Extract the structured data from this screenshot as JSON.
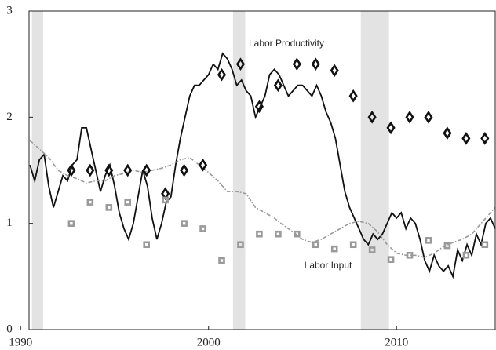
{
  "chart_data": {
    "type": "line",
    "xlim": [
      1990.45,
      2015.25
    ],
    "ylim": [
      0,
      3
    ],
    "xticks": [
      1990,
      2000,
      2010
    ],
    "yticks": [
      0,
      1,
      2,
      3
    ],
    "grid": false,
    "shading_color": "#e3e3e3",
    "shading": [
      [
        1990.6,
        1991.2
      ],
      [
        2001.3,
        2001.95
      ],
      [
        2008.1,
        2009.6
      ]
    ],
    "annotations": [
      "Labor Productivity",
      "Labor Input"
    ],
    "series": [
      {
        "mode": "line",
        "color": "#111111",
        "dash": false,
        "x": [
          1990.5,
          1990.75,
          1991,
          1991.25,
          1991.5,
          1991.75,
          1992,
          1992.25,
          1992.5,
          1992.75,
          1993,
          1993.25,
          1993.5,
          1993.75,
          1994,
          1994.25,
          1994.5,
          1994.75,
          1995,
          1995.25,
          1995.5,
          1995.75,
          1996,
          1996.25,
          1996.5,
          1996.75,
          1997,
          1997.25,
          1997.5,
          1997.75,
          1998,
          1998.25,
          1998.5,
          1998.75,
          1999,
          1999.25,
          1999.5,
          1999.75,
          2000,
          2000.25,
          2000.5,
          2000.75,
          2001,
          2001.25,
          2001.5,
          2001.75,
          2002,
          2002.25,
          2002.5,
          2002.75,
          2003,
          2003.25,
          2003.5,
          2003.75,
          2004,
          2004.25,
          2004.5,
          2004.75,
          2005,
          2005.25,
          2005.5,
          2005.75,
          2006,
          2006.25,
          2006.5,
          2006.75,
          2007,
          2007.25,
          2007.5,
          2007.75,
          2008,
          2008.25,
          2008.5,
          2008.75,
          2009,
          2009.25,
          2009.5,
          2009.75,
          2010,
          2010.25,
          2010.5,
          2010.75,
          2011,
          2011.25,
          2011.5,
          2011.75,
          2012,
          2012.25,
          2012.5,
          2012.75,
          2013,
          2013.25,
          2013.5,
          2013.75,
          2014,
          2014.25,
          2014.5,
          2014.75,
          2015,
          2015.25
        ],
        "values": [
          1.55,
          1.4,
          1.6,
          1.65,
          1.35,
          1.15,
          1.3,
          1.45,
          1.4,
          1.55,
          1.6,
          1.9,
          1.9,
          1.7,
          1.5,
          1.3,
          1.45,
          1.55,
          1.35,
          1.1,
          0.95,
          0.85,
          1.0,
          1.25,
          1.5,
          1.35,
          1.05,
          0.85,
          1.0,
          1.2,
          1.25,
          1.55,
          1.8,
          2.0,
          2.2,
          2.3,
          2.3,
          2.35,
          2.4,
          2.5,
          2.45,
          2.6,
          2.55,
          2.45,
          2.3,
          2.35,
          2.25,
          2.2,
          2.0,
          2.1,
          2.2,
          2.4,
          2.45,
          2.4,
          2.3,
          2.2,
          2.25,
          2.3,
          2.3,
          2.25,
          2.2,
          2.3,
          2.2,
          2.05,
          1.95,
          1.8,
          1.55,
          1.3,
          1.15,
          1.05,
          0.95,
          0.85,
          0.8,
          0.9,
          0.85,
          0.9,
          1.0,
          1.1,
          1.05,
          1.1,
          0.95,
          1.05,
          1.0,
          0.85,
          0.65,
          0.55,
          0.7,
          0.6,
          0.55,
          0.6,
          0.5,
          0.75,
          0.65,
          0.8,
          0.7,
          0.9,
          0.8,
          1.0,
          1.05,
          0.95
        ]
      },
      {
        "mode": "line",
        "color": "#9a9a9a",
        "dash": true,
        "x": [
          1990.5,
          1991,
          1991.5,
          1992,
          1992.5,
          1993,
          1993.5,
          1994,
          1994.5,
          1995,
          1995.5,
          1996,
          1996.5,
          1997,
          1997.5,
          1998,
          1998.5,
          1999,
          1999.5,
          2000,
          2000.5,
          2001,
          2001.5,
          2002,
          2002.5,
          2003,
          2003.5,
          2004,
          2004.5,
          2005,
          2005.5,
          2006,
          2006.5,
          2007,
          2007.5,
          2008,
          2008.5,
          2009,
          2009.5,
          2010,
          2010.5,
          2011,
          2011.5,
          2012,
          2012.5,
          2013,
          2013.5,
          2014,
          2014.5,
          2015,
          2015.25
        ],
        "values": [
          1.78,
          1.7,
          1.62,
          1.5,
          1.45,
          1.42,
          1.38,
          1.4,
          1.4,
          1.45,
          1.47,
          1.5,
          1.48,
          1.5,
          1.52,
          1.55,
          1.6,
          1.62,
          1.55,
          1.48,
          1.4,
          1.3,
          1.3,
          1.28,
          1.15,
          1.1,
          1.05,
          0.98,
          0.92,
          0.85,
          0.82,
          0.85,
          0.9,
          0.95,
          1.0,
          1.02,
          1.0,
          0.92,
          0.8,
          0.72,
          0.7,
          0.7,
          0.68,
          0.72,
          0.78,
          0.82,
          0.85,
          0.9,
          1.0,
          1.1,
          1.15
        ]
      },
      {
        "mode": "marker",
        "marker": "diamond",
        "color": "#111111",
        "x": [
          1992.7,
          1993.7,
          1994.7,
          1995.7,
          1996.7,
          1997.7,
          1998.7,
          1999.7,
          2000.7,
          2001.7,
          2002.7,
          2003.7,
          2004.7,
          2005.7,
          2006.7,
          2007.7,
          2008.7,
          2009.7,
          2010.7,
          2011.7,
          2012.7,
          2013.7,
          2014.7
        ],
        "values": [
          1.5,
          1.5,
          1.5,
          1.5,
          1.5,
          1.28,
          1.5,
          1.55,
          2.4,
          2.5,
          2.1,
          2.3,
          2.5,
          2.5,
          2.44,
          2.2,
          2.0,
          1.9,
          2.0,
          2.0,
          1.85,
          1.8,
          1.8
        ]
      },
      {
        "mode": "marker",
        "marker": "square",
        "color": "#9a9a9a",
        "x": [
          1992.7,
          1993.7,
          1994.7,
          1995.7,
          1996.7,
          1997.7,
          1998.7,
          1999.7,
          2000.7,
          2001.7,
          2002.7,
          2003.7,
          2004.7,
          2005.7,
          2006.7,
          2007.7,
          2008.7,
          2009.7,
          2010.7,
          2011.7,
          2012.7,
          2013.7,
          2014.7
        ],
        "values": [
          1.0,
          1.2,
          1.15,
          1.2,
          0.8,
          1.22,
          1.0,
          0.95,
          0.65,
          0.8,
          0.9,
          0.9,
          0.9,
          0.8,
          0.76,
          0.8,
          0.75,
          0.66,
          0.7,
          0.84,
          0.79,
          0.7,
          0.8
        ]
      }
    ]
  }
}
